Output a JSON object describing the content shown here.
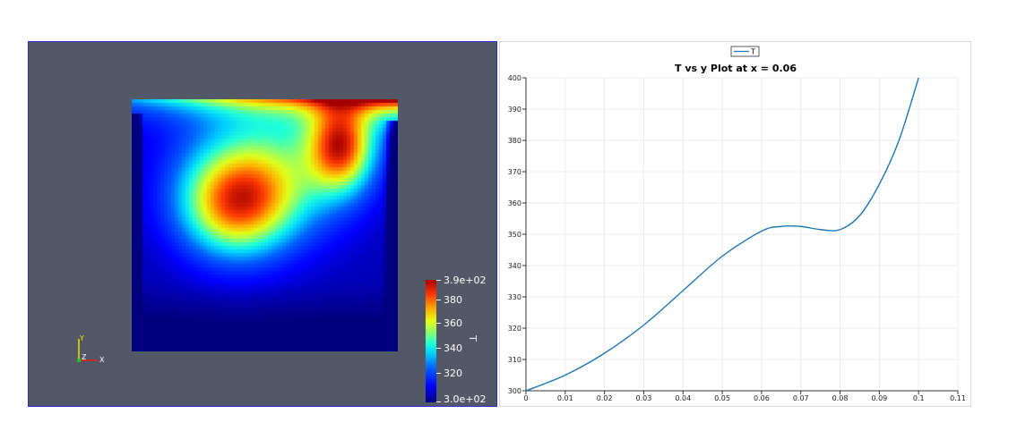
{
  "render_view": {
    "colorbar": {
      "title": "T",
      "top_label": "3.9e+02",
      "bottom_label": "3.0e+02",
      "ticks": [
        "380",
        "360",
        "340",
        "320"
      ]
    },
    "axes": {
      "y": "Y",
      "z": "Z",
      "x": "X"
    },
    "colors": {
      "background": "#525866",
      "border": "#2c2fd8"
    }
  },
  "chart_data": {
    "type": "line",
    "title": "T vs y Plot at x = 0.06",
    "legend": [
      "T"
    ],
    "legend_position": "top-center",
    "xlabel": "",
    "ylabel": "",
    "xlim": [
      0,
      0.11
    ],
    "ylim": [
      300,
      400
    ],
    "x_ticks": [
      "0",
      "0.01",
      "0.02",
      "0.03",
      "0.04",
      "0.05",
      "0.06",
      "0.07",
      "0.08",
      "0.09",
      "0.1",
      "0.11"
    ],
    "y_ticks": [
      "300",
      "310",
      "320",
      "330",
      "340",
      "350",
      "360",
      "370",
      "380",
      "390",
      "400"
    ],
    "grid": true,
    "series": [
      {
        "name": "T",
        "color": "#1f77b4",
        "x": [
          0,
          0.01,
          0.02,
          0.03,
          0.04,
          0.05,
          0.06,
          0.065,
          0.07,
          0.075,
          0.08,
          0.085,
          0.09,
          0.095,
          0.1
        ],
        "y": [
          300,
          305,
          312,
          321,
          332,
          343,
          351,
          352.5,
          352.5,
          351.5,
          351.5,
          356,
          366,
          380,
          400
        ]
      }
    ]
  }
}
